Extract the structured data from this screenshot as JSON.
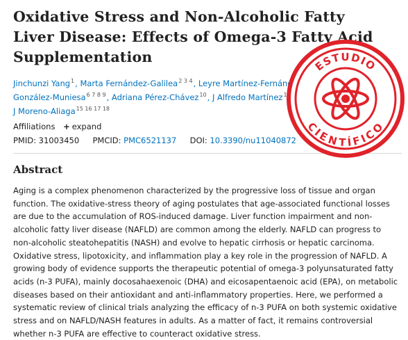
{
  "article": {
    "title": "Oxidative Stress and Non-Alcoholic Fatty Liver Disease: Effects of Omega-3 Fatty Acid Supplementation",
    "authors": [
      {
        "name": "Jinchunzi Yang",
        "sup": "1",
        "sep": ", "
      },
      {
        "name": "Marta Fernández-Galilea",
        "sup": "2 3 4",
        "sep": ", "
      },
      {
        "name": "Leyre Martínez-Fernández",
        "sup": "5",
        "sep": ", "
      },
      {
        "name": "Pedro González-Muniesa",
        "sup": "6 7 8 9",
        "sep": ", "
      },
      {
        "name": "Adriana Pérez-Chávez",
        "sup": "10",
        "sep": ", "
      },
      {
        "name": "J Alfredo Martínez",
        "sup": "11 12 13",
        "sep": ", "
      },
      {
        "name": "Maria J Moreno-Aliaga",
        "sup": "15 16 17 18",
        "sep": ""
      }
    ],
    "affiliations_label": "Affiliations",
    "expand_label": "expand",
    "pmid_label": "PMID:",
    "pmid": "31003450",
    "pmcid_label": "PMCID:",
    "pmcid": "PMC6521137",
    "doi_label": "DOI:",
    "doi": "10.3390/nu11040872",
    "abstract_heading": "Abstract",
    "abstract_text": "Aging is a complex phenomenon characterized by the progressive loss of tissue and organ function. The oxidative-stress theory of aging postulates that age-associated functional losses are due to the accumulation of ROS-induced damage. Liver function impairment and non-alcoholic fatty liver disease (NAFLD) are common among the elderly. NAFLD can progress to non-alcoholic steatohepatitis (NASH) and evolve to hepatic cirrhosis or hepatic carcinoma. Oxidative stress, lipotoxicity, and inflammation play a key role in the progression of NAFLD. A growing body of evidence supports the therapeutic potential of omega-3 polyunsaturated fatty acids (n-3 PUFA), mainly docosahaexenoic (DHA) and eicosapentaenoic acid (EPA), on metabolic diseases based on their antioxidant and anti-inflammatory properties. Here, we performed a systematic review of clinical trials analyzing the efficacy of n-3 PUFA on both systemic oxidative stress and on NAFLD/NASH features in adults. As a matter of fact, it remains controversial whether n-3 PUFA are effective to counteract oxidative stress."
  },
  "stamp": {
    "top_text": "ESTUDIO",
    "bottom_text": "CIENTÍFICO",
    "color": "#e0222a",
    "icon": "atom-icon"
  },
  "colors": {
    "link": "#0071bc",
    "text": "#212121"
  }
}
